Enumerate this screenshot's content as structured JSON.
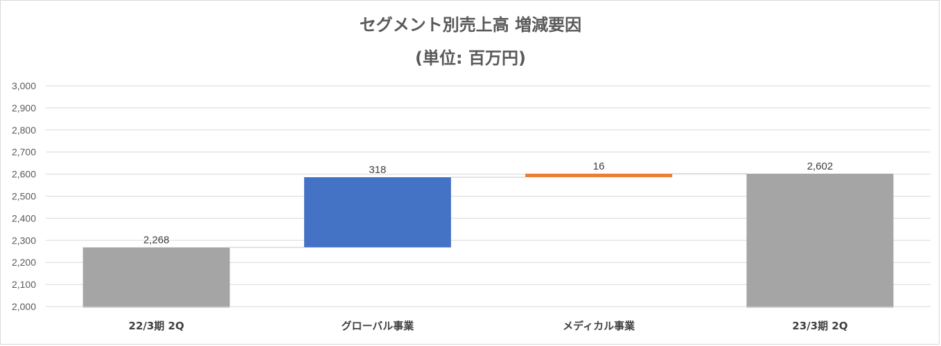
{
  "chart_data": {
    "type": "waterfall",
    "title": "セグメント別売上高 増減要因",
    "subtitle": "(単位: 百万円)",
    "categories": [
      "22/3期 2Q",
      "グローバル事業",
      "メディカル事業",
      "23/3期 2Q"
    ],
    "values": [
      2268,
      318,
      16,
      2602
    ],
    "kinds": [
      "total",
      "increase",
      "increase",
      "total"
    ],
    "data_labels": [
      "2,268",
      "318",
      "16",
      "2,602"
    ],
    "colors": [
      "#a5a5a5",
      "#4472c4",
      "#ed7d31",
      "#a5a5a5"
    ],
    "connector_color": "#d9d9d9",
    "ylim": [
      2000,
      3000
    ],
    "ytick_step": 100,
    "ytick_labels": [
      "2,000",
      "2,100",
      "2,200",
      "2,300",
      "2,400",
      "2,500",
      "2,600",
      "2,700",
      "2,800",
      "2,900",
      "3,000"
    ],
    "grid": true,
    "legend": "none"
  }
}
